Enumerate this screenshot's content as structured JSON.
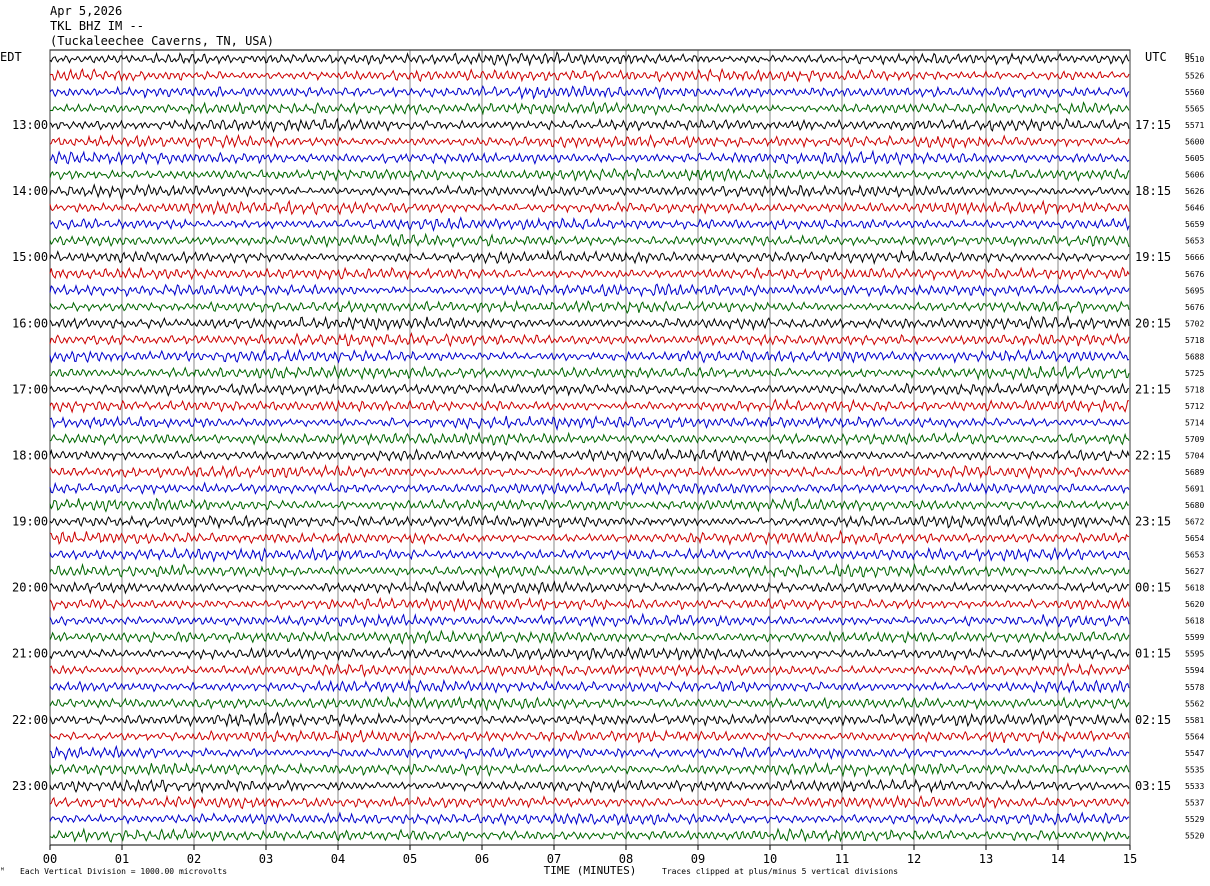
{
  "header": {
    "date": "Apr 5,2026",
    "station": "TKL BHZ IM --",
    "location": "(Tuckaleechee Caverns, TN, USA)"
  },
  "chart_data": {
    "type": "line",
    "title": "TKL BHZ IM --",
    "left_axis_label": "EDT",
    "right_axis_label": "UTC",
    "dc_label": "DC",
    "xlabel": "TIME (MINUTES)",
    "xlim": [
      0,
      15
    ],
    "x_ticks": [
      "00",
      "01",
      "02",
      "03",
      "04",
      "05",
      "06",
      "07",
      "08",
      "09",
      "10",
      "11",
      "12",
      "13",
      "14",
      "15"
    ],
    "left_hour_labels": [
      "13:00",
      "14:00",
      "15:00",
      "16:00",
      "17:00",
      "18:00",
      "19:00",
      "20:00",
      "21:00",
      "22:00",
      "23:00"
    ],
    "right_hour_labels": [
      "17:15",
      "18:15",
      "19:15",
      "20:15",
      "21:15",
      "22:15",
      "23:15",
      "00:15",
      "01:15",
      "02:15",
      "03:15"
    ],
    "trace_colors": [
      "#000000",
      "#cc0000",
      "#0000cc",
      "#006600"
    ],
    "rows_per_hour": 4,
    "dc_offsets": [
      5510,
      5526,
      5560,
      5565,
      5571,
      5600,
      5605,
      5606,
      5626,
      5646,
      5659,
      5653,
      5666,
      5676,
      5695,
      5676,
      5702,
      5718,
      5688,
      5725,
      5718,
      5712,
      5714,
      5709,
      5704,
      5689,
      5691,
      5680,
      5672,
      5654,
      5653,
      5627,
      5618,
      5620,
      5618,
      5599,
      5595,
      5594,
      5578,
      5562,
      5581,
      5564,
      5547,
      5535,
      5533,
      5537,
      5529,
      5520
    ],
    "grid": true,
    "footer_left": "Each Vertical Division = 1000.00 microvolts",
    "footer_right": "Traces clipped at plus/minus 5 vertical divisions"
  }
}
